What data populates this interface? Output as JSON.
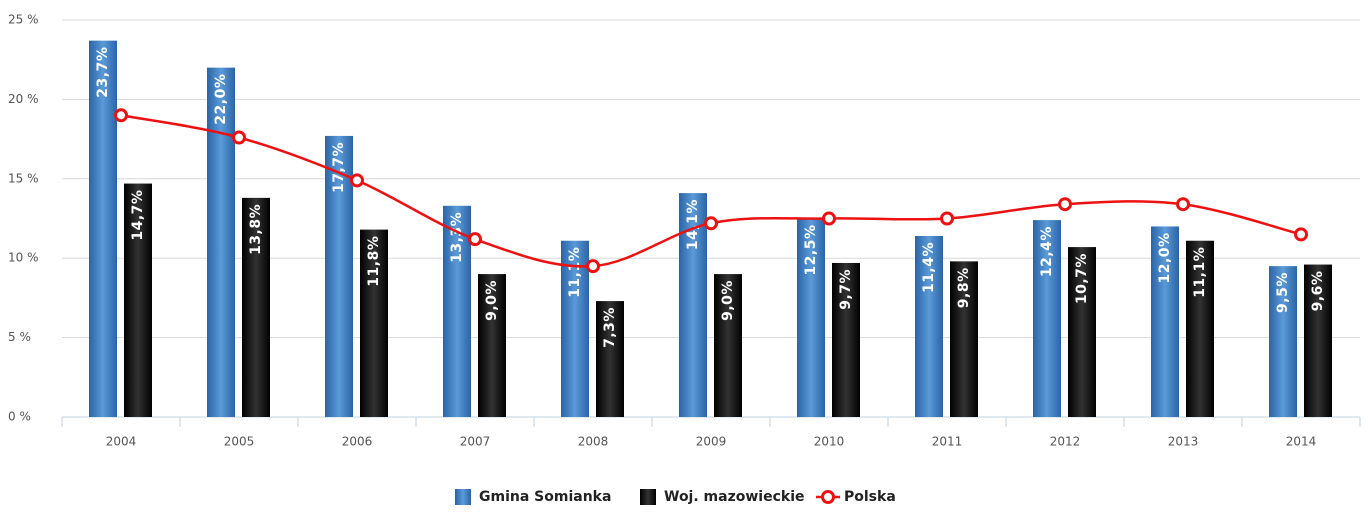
{
  "chart_data": {
    "type": "bar",
    "categories": [
      "2004",
      "2005",
      "2006",
      "2007",
      "2008",
      "2009",
      "2010",
      "2011",
      "2012",
      "2013",
      "2014"
    ],
    "series": [
      {
        "name": "Gmina Somianka",
        "type": "bar",
        "color": "#3f7fc0",
        "values": [
          23.7,
          22.0,
          17.7,
          13.3,
          11.1,
          14.1,
          12.5,
          11.4,
          12.4,
          12.0,
          9.5
        ],
        "value_labels": [
          "23,7%",
          "22,0%",
          "17,7%",
          "13,3%",
          "11,1%",
          "14,1%",
          "12,5%",
          "11,4%",
          "12,4%",
          "12,0%",
          "9,5%"
        ]
      },
      {
        "name": "Woj. mazowieckie",
        "type": "bar",
        "color": "#111111",
        "values": [
          14.7,
          13.8,
          11.8,
          9.0,
          7.3,
          9.0,
          9.7,
          9.8,
          10.7,
          11.1,
          9.6
        ],
        "value_labels": [
          "14,7%",
          "13,8%",
          "11,8%",
          "9,0%",
          "7,3%",
          "9,0%",
          "9,7%",
          "9,8%",
          "10,7%",
          "11,1%",
          "9,6%"
        ]
      },
      {
        "name": "Polska",
        "type": "line",
        "color": "#ee1111",
        "values": [
          19.0,
          17.6,
          14.9,
          11.2,
          9.5,
          12.2,
          12.5,
          12.5,
          13.4,
          13.4,
          11.5
        ]
      }
    ],
    "ylim": [
      0,
      25
    ],
    "yticks": [
      {
        "value": 0,
        "label": "0 %"
      },
      {
        "value": 5,
        "label": "5 %"
      },
      {
        "value": 10,
        "label": "10 %"
      },
      {
        "value": 15,
        "label": "15 %"
      },
      {
        "value": 20,
        "label": "20 %"
      },
      {
        "value": 25,
        "label": "25 %"
      }
    ],
    "grid": true,
    "legend": "bottom"
  }
}
